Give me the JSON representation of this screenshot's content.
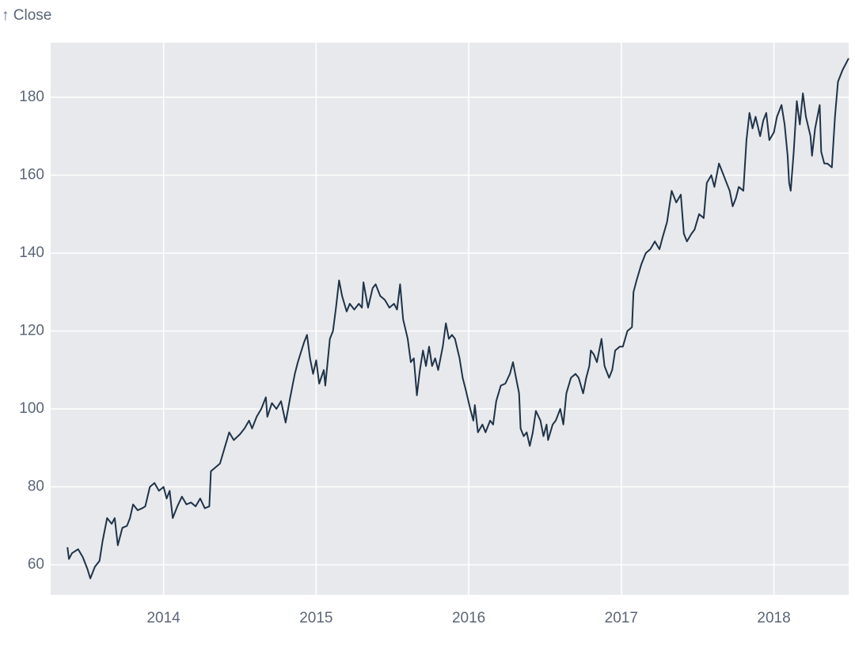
{
  "chart_data": {
    "type": "line",
    "y_label": "↑ Close",
    "x": [
      2013.37,
      2013.38,
      2013.4,
      2013.44,
      2013.47,
      2013.5,
      2013.52,
      2013.55,
      2013.58,
      2013.6,
      2013.63,
      2013.66,
      2013.68,
      2013.7,
      2013.73,
      2013.76,
      2013.78,
      2013.8,
      2013.83,
      2013.86,
      2013.88,
      2013.91,
      2013.94,
      2013.97,
      2014.0,
      2014.02,
      2014.04,
      2014.06,
      2014.09,
      2014.12,
      2014.15,
      2014.18,
      2014.21,
      2014.24,
      2014.27,
      2014.3,
      2014.31,
      2014.34,
      2014.37,
      2014.4,
      2014.43,
      2014.46,
      2014.5,
      2014.53,
      2014.56,
      2014.58,
      2014.61,
      2014.64,
      2014.67,
      2014.68,
      2014.71,
      2014.74,
      2014.77,
      2014.8,
      2014.83,
      2014.86,
      2014.88,
      2014.92,
      2014.94,
      2014.96,
      2014.98,
      2015.0,
      2015.02,
      2015.05,
      2015.06,
      2015.08,
      2015.09,
      2015.11,
      2015.13,
      2015.15,
      2015.17,
      2015.2,
      2015.22,
      2015.25,
      2015.28,
      2015.3,
      2015.31,
      2015.34,
      2015.37,
      2015.39,
      2015.42,
      2015.45,
      2015.48,
      2015.51,
      2015.53,
      2015.55,
      2015.57,
      2015.6,
      2015.62,
      2015.64,
      2015.66,
      2015.68,
      2015.7,
      2015.72,
      2015.74,
      2015.76,
      2015.78,
      2015.8,
      2015.83,
      2015.85,
      2015.87,
      2015.89,
      2015.91,
      2015.94,
      2015.96,
      2015.98,
      2016.01,
      2016.03,
      2016.04,
      2016.06,
      2016.09,
      2016.11,
      2016.14,
      2016.16,
      2016.18,
      2016.21,
      2016.24,
      2016.27,
      2016.29,
      2016.31,
      2016.33,
      2016.34,
      2016.36,
      2016.38,
      2016.4,
      2016.42,
      2016.44,
      2016.47,
      2016.49,
      2016.51,
      2016.52,
      2016.55,
      2016.57,
      2016.6,
      2016.62,
      2016.64,
      2016.67,
      2016.7,
      2016.72,
      2016.75,
      2016.77,
      2016.79,
      2016.8,
      2016.82,
      2016.84,
      2016.87,
      2016.89,
      2016.92,
      2016.94,
      2016.96,
      2016.99,
      2017.01,
      2017.04,
      2017.07,
      2017.08,
      2017.1,
      2017.13,
      2017.16,
      2017.19,
      2017.22,
      2017.25,
      2017.27,
      2017.3,
      2017.33,
      2017.36,
      2017.39,
      2017.41,
      2017.43,
      2017.46,
      2017.48,
      2017.51,
      2017.54,
      2017.56,
      2017.59,
      2017.61,
      2017.64,
      2017.67,
      2017.69,
      2017.71,
      2017.73,
      2017.75,
      2017.77,
      2017.8,
      2017.82,
      2017.84,
      2017.86,
      2017.88,
      2017.91,
      2017.93,
      2017.95,
      2017.97,
      2018.0,
      2018.02,
      2018.05,
      2018.07,
      2018.09,
      2018.1,
      2018.11,
      2018.13,
      2018.15,
      2018.17,
      2018.19,
      2018.21,
      2018.24,
      2018.25,
      2018.27,
      2018.3,
      2018.31,
      2018.33,
      2018.35,
      2018.38,
      2018.4,
      2018.42,
      2018.45,
      2018.49
    ],
    "series": [
      {
        "color": "#1f3349",
        "values": [
          64.5,
          61.5,
          63,
          64,
          62,
          59,
          56.5,
          59.5,
          61,
          66,
          72,
          70.5,
          72,
          65,
          69.5,
          70,
          72,
          75.5,
          74,
          74.5,
          75,
          80,
          81,
          79,
          80,
          77,
          79,
          72,
          75,
          77.5,
          75.5,
          76,
          75,
          77,
          74.5,
          75,
          84,
          85,
          86,
          90,
          94,
          92,
          93.5,
          95,
          97,
          95,
          98,
          100,
          103,
          98,
          101.5,
          100,
          102,
          96.5,
          103,
          109,
          112,
          117,
          119,
          113,
          109,
          112.5,
          106.5,
          110,
          106,
          114,
          118,
          120,
          126,
          133,
          129,
          125,
          127,
          125.5,
          127,
          126,
          132.5,
          126,
          131,
          132,
          129,
          128,
          126,
          127,
          125.5,
          132,
          123,
          118,
          112,
          113,
          103.5,
          110,
          115,
          111,
          116,
          111,
          113,
          110,
          116,
          122,
          118,
          119,
          118,
          113,
          108,
          105,
          100,
          97,
          101,
          94,
          96,
          94,
          97,
          96,
          102,
          106,
          106.5,
          109,
          112,
          108,
          104,
          95,
          93,
          94,
          90.5,
          94,
          99.5,
          97,
          93,
          96,
          92,
          96,
          97,
          100,
          96,
          104,
          108,
          109,
          108,
          104,
          108,
          111,
          115,
          114,
          112,
          118,
          111,
          108,
          110,
          115,
          116,
          116,
          120,
          121,
          130,
          133,
          137,
          140,
          141,
          143,
          141,
          144,
          148,
          156,
          153,
          155,
          145,
          143,
          145,
          146,
          150,
          149,
          158,
          160,
          157,
          163,
          160,
          158,
          156,
          152,
          154,
          157,
          156,
          169,
          176,
          172,
          175,
          170,
          174,
          176,
          169,
          171,
          175,
          178,
          173,
          165,
          158,
          156,
          166,
          179,
          173,
          181,
          175,
          170,
          165,
          172,
          178,
          166,
          163,
          163,
          162,
          175,
          184,
          187,
          190
        ]
      }
    ],
    "xlim": [
      2013.26,
      2018.49
    ],
    "ylim": [
      52.3,
      194
    ],
    "xticks": [
      2014,
      2015,
      2016,
      2017,
      2018
    ],
    "yticks": [
      60,
      80,
      100,
      120,
      140,
      160,
      180
    ],
    "grid": true,
    "background": "#e8e9ec"
  }
}
